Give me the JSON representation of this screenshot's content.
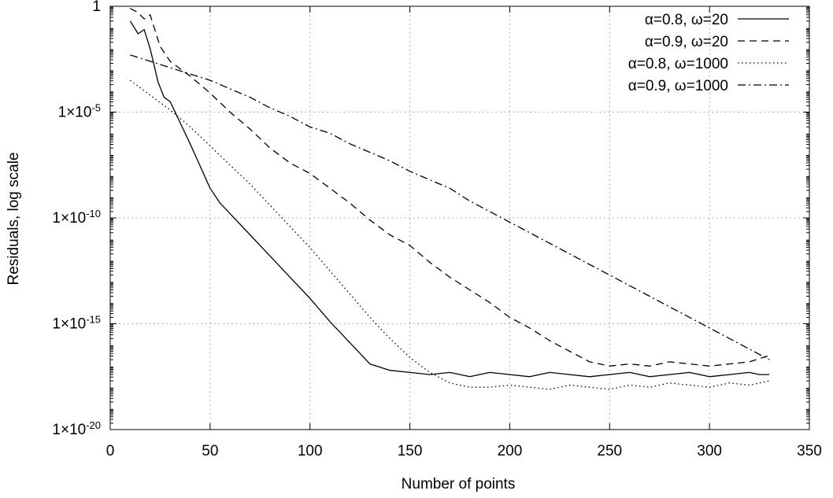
{
  "chart_data": {
    "type": "line",
    "title": "",
    "xlabel": "Number of points",
    "ylabel": "Residuals, log scale",
    "xlim": [
      0,
      350
    ],
    "ylim": [
      1e-20,
      1
    ],
    "y_scale": "log",
    "grid": true,
    "legend_position": "top-right",
    "x_ticks": [
      {
        "value": 0,
        "label": "0"
      },
      {
        "value": 50,
        "label": "50"
      },
      {
        "value": 100,
        "label": "100"
      },
      {
        "value": 150,
        "label": "150"
      },
      {
        "value": 200,
        "label": "200"
      },
      {
        "value": 250,
        "label": "250"
      },
      {
        "value": 300,
        "label": "300"
      },
      {
        "value": 350,
        "label": "350"
      }
    ],
    "y_ticks": [
      {
        "exp": 0,
        "mant": "1",
        "sup": ""
      },
      {
        "exp": -5,
        "mant": "1×10",
        "sup": "-5"
      },
      {
        "exp": -10,
        "mant": "1×10",
        "sup": "-10"
      },
      {
        "exp": -15,
        "mant": "1×10",
        "sup": "-15"
      },
      {
        "exp": -20,
        "mant": "1×10",
        "sup": "-20"
      }
    ],
    "series": [
      {
        "name": "α=0.8, ω=20",
        "dash": "solid",
        "x": [
          10,
          14,
          17,
          20,
          24,
          27,
          30,
          40,
          50,
          55,
          60,
          70,
          80,
          90,
          100,
          110,
          120,
          130,
          140,
          150,
          160,
          170,
          180,
          190,
          200,
          210,
          220,
          230,
          240,
          250,
          260,
          270,
          280,
          290,
          300,
          310,
          320,
          325,
          330
        ],
        "log10_y": [
          -0.7,
          -1.3,
          -1.1,
          -2.0,
          -3.6,
          -4.3,
          -4.5,
          -6.5,
          -8.6,
          -9.3,
          -9.8,
          -10.8,
          -11.8,
          -12.8,
          -13.8,
          -14.9,
          -15.9,
          -16.9,
          -17.2,
          -17.3,
          -17.4,
          -17.3,
          -17.5,
          -17.3,
          -17.4,
          -17.5,
          -17.3,
          -17.4,
          -17.5,
          -17.4,
          -17.3,
          -17.5,
          -17.4,
          -17.3,
          -17.5,
          -17.4,
          -17.3,
          -17.4,
          -17.4
        ]
      },
      {
        "name": "α=0.9, ω=20",
        "dash": "dashed",
        "x": [
          10,
          14,
          17,
          20,
          25,
          30,
          40,
          50,
          60,
          70,
          80,
          90,
          100,
          110,
          120,
          130,
          140,
          150,
          160,
          170,
          180,
          190,
          200,
          210,
          220,
          230,
          240,
          250,
          260,
          270,
          280,
          290,
          300,
          310,
          320,
          330
        ],
        "log10_y": [
          -0.1,
          -0.3,
          -0.6,
          -0.4,
          -1.9,
          -2.6,
          -3.3,
          -4.1,
          -5.0,
          -5.8,
          -6.7,
          -7.4,
          -7.9,
          -8.6,
          -9.3,
          -10.1,
          -10.8,
          -11.3,
          -12.1,
          -12.8,
          -13.4,
          -14.0,
          -14.7,
          -15.2,
          -15.8,
          -16.3,
          -16.8,
          -17.0,
          -16.9,
          -17.0,
          -16.8,
          -16.9,
          -17.0,
          -16.9,
          -16.8,
          -16.5
        ]
      },
      {
        "name": "α=0.8, ω=1000",
        "dash": "dotted",
        "x": [
          10,
          20,
          30,
          40,
          50,
          60,
          70,
          80,
          90,
          100,
          110,
          120,
          130,
          140,
          150,
          160,
          170,
          180,
          190,
          200,
          210,
          220,
          230,
          240,
          250,
          260,
          270,
          280,
          290,
          300,
          310,
          320,
          330
        ],
        "log10_y": [
          -3.5,
          -4.2,
          -4.9,
          -5.7,
          -6.6,
          -7.5,
          -8.4,
          -9.4,
          -10.4,
          -11.4,
          -12.5,
          -13.6,
          -14.7,
          -15.7,
          -16.6,
          -17.3,
          -17.8,
          -18.0,
          -18.0,
          -17.9,
          -18.0,
          -18.1,
          -17.9,
          -18.0,
          -18.1,
          -17.9,
          -18.0,
          -17.8,
          -17.9,
          -18.0,
          -17.8,
          -17.9,
          -17.7
        ]
      },
      {
        "name": "α=0.9, ω=1000",
        "dash": "dashdot",
        "x": [
          10,
          20,
          30,
          40,
          50,
          60,
          70,
          80,
          90,
          100,
          110,
          120,
          130,
          140,
          150,
          160,
          170,
          180,
          190,
          200,
          210,
          220,
          230,
          240,
          250,
          260,
          270,
          280,
          290,
          300,
          310,
          320,
          330
        ],
        "log10_y": [
          -2.3,
          -2.6,
          -2.9,
          -3.2,
          -3.5,
          -3.9,
          -4.3,
          -4.8,
          -5.2,
          -5.7,
          -6.0,
          -6.5,
          -6.9,
          -7.3,
          -7.8,
          -8.2,
          -8.6,
          -9.2,
          -9.7,
          -10.2,
          -10.7,
          -11.2,
          -11.7,
          -12.2,
          -12.7,
          -13.2,
          -13.7,
          -14.2,
          -14.7,
          -15.2,
          -15.7,
          -16.2,
          -16.7
        ]
      }
    ]
  }
}
